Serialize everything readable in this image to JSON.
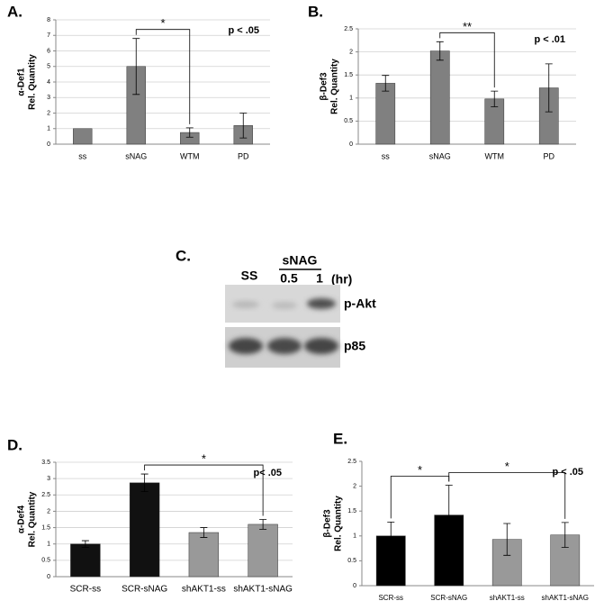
{
  "chart_data": [
    {
      "type": "bar",
      "panel": "A.",
      "ylabel": [
        "α-Def1",
        "Rel. Quantity"
      ],
      "categories": [
        "ss",
        "sNAG",
        "WTM",
        "PD"
      ],
      "values": [
        1,
        5,
        0.75,
        1.2
      ],
      "errors": [
        null,
        1.8,
        0.3,
        0.8
      ],
      "colors": [
        "#808080",
        "#808080",
        "#808080",
        "#808080"
      ],
      "ylim": [
        0,
        8
      ],
      "yticks": [
        0,
        1,
        2,
        3,
        4,
        5,
        6,
        7,
        8
      ],
      "grid": true,
      "pvalue": "p < .05",
      "significance": [
        {
          "text": "*",
          "between": [
            "sNAG",
            "WTM"
          ]
        }
      ]
    },
    {
      "type": "bar",
      "panel": "B.",
      "ylabel": [
        "β-Def3",
        "Rel. Quantity"
      ],
      "categories": [
        "ss",
        "sNAG",
        "WTM",
        "PD"
      ],
      "values": [
        1.32,
        2.02,
        0.98,
        1.22
      ],
      "errors": [
        0.17,
        0.2,
        0.17,
        0.52
      ],
      "colors": [
        "#808080",
        "#808080",
        "#808080",
        "#808080"
      ],
      "ylim": [
        0,
        2.5
      ],
      "yticks": [
        0,
        0.5,
        1,
        1.5,
        2,
        2.5
      ],
      "grid": true,
      "pvalue": "p < .01",
      "significance": [
        {
          "text": "**",
          "between": [
            "sNAG",
            "WTM"
          ]
        }
      ]
    },
    {
      "type": "blot",
      "panel": "C.",
      "group_label": "sNAG",
      "lanes": [
        "SS",
        "0.5",
        "1"
      ],
      "unit": "(hr)",
      "rows": [
        "p-Akt",
        "p85"
      ]
    },
    {
      "type": "bar",
      "panel": "D.",
      "ylabel": [
        "α-Def4",
        "Rel. Quantity"
      ],
      "categories": [
        "SCR-ss",
        "SCR-sNAG",
        "shAKT1-ss",
        "shAKT1-sNAG"
      ],
      "values": [
        1.0,
        2.87,
        1.35,
        1.6
      ],
      "errors": [
        0.1,
        0.27,
        0.15,
        0.15
      ],
      "colors": [
        "#111111",
        "#111111",
        "#999999",
        "#999999"
      ],
      "ylim": [
        0,
        3.5
      ],
      "yticks": [
        0,
        0.5,
        1,
        1.5,
        2,
        2.5,
        3,
        3.5
      ],
      "grid": true,
      "pvalue": "p< .05",
      "significance": [
        {
          "text": "*",
          "between": [
            "SCR-sNAG",
            "shAKT1-sNAG"
          ]
        }
      ]
    },
    {
      "type": "bar",
      "panel": "E.",
      "ylabel": [
        "β-Def3",
        "Rel. Quantity"
      ],
      "categories": [
        "SCR-ss",
        "SCR-sNAG",
        "shAKT1-ss",
        "shAKT1-sNAG"
      ],
      "values": [
        1.0,
        1.42,
        0.93,
        1.02
      ],
      "errors": [
        0.28,
        0.6,
        0.32,
        0.25
      ],
      "colors": [
        "#000000",
        "#000000",
        "#999999",
        "#999999"
      ],
      "ylim": [
        0,
        2.5
      ],
      "yticks": [
        0,
        0.5,
        1,
        1.5,
        2,
        2.5
      ],
      "grid": false,
      "pvalue": "p < .05",
      "significance": [
        {
          "text": "*",
          "between": [
            "SCR-ss",
            "SCR-sNAG"
          ]
        },
        {
          "text": "*",
          "between": [
            "SCR-sNAG",
            "shAKT1-sNAG"
          ]
        }
      ]
    }
  ]
}
